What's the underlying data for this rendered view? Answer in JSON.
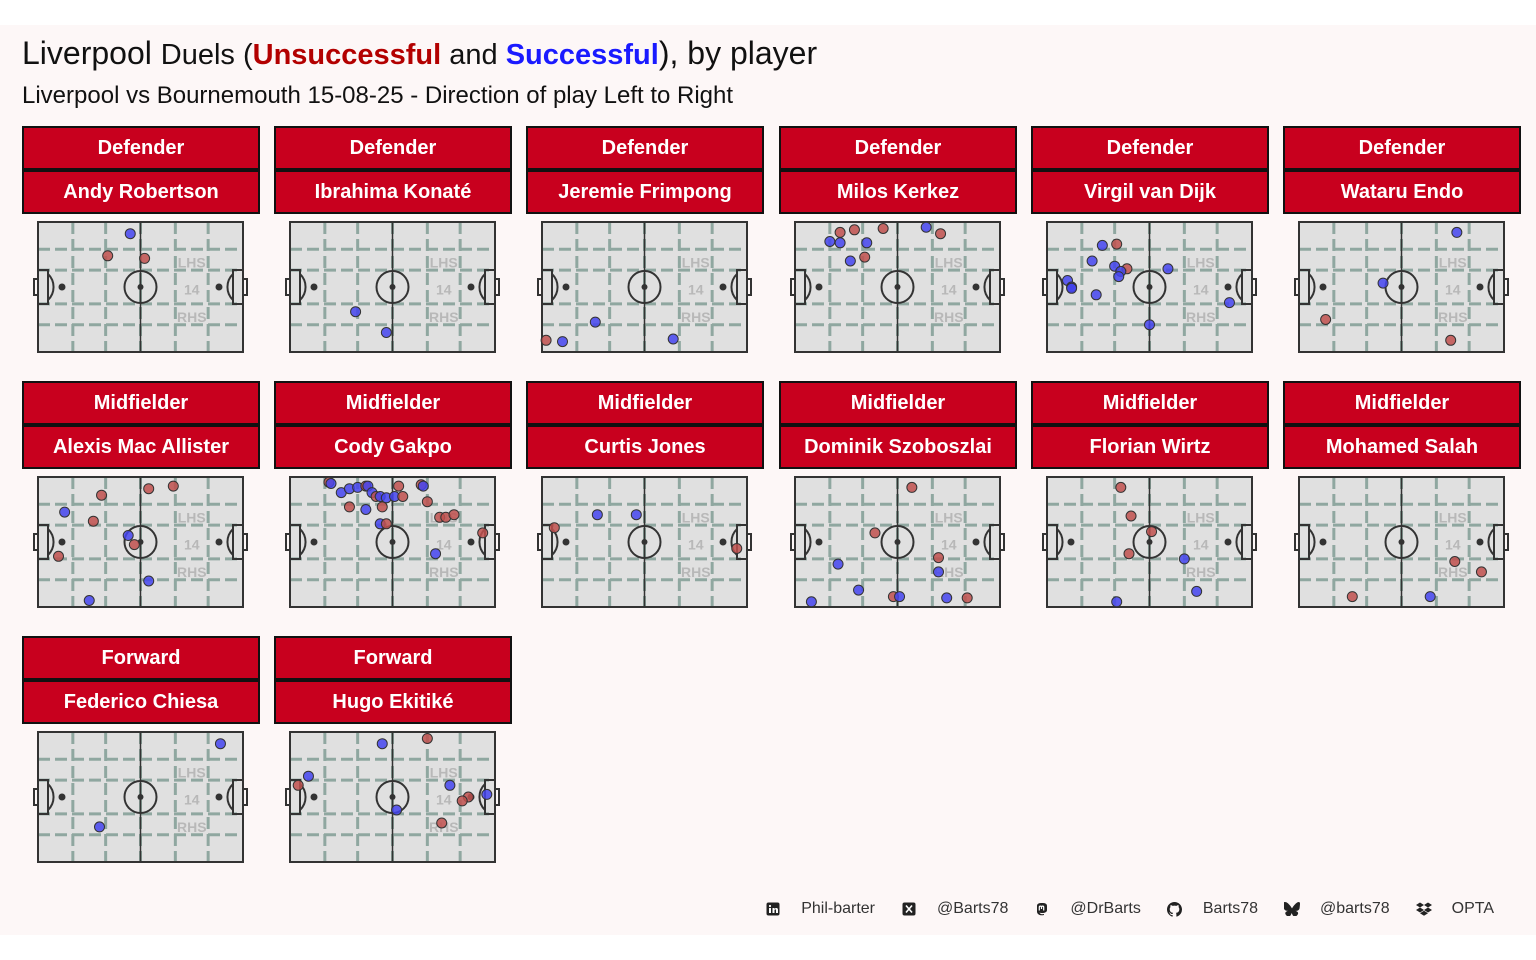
{
  "title": {
    "team": "Liverpool",
    "duels": "Duels",
    "open_paren": " (",
    "unsuccessful": "Unsuccessful",
    "and": " and ",
    "successful": "Successful",
    "close": "), by player"
  },
  "subtitle": "Liverpool vs Bournemouth 15-08-25 - Direction of play Left to Right",
  "pitch_labels": {
    "lhs": "LHS",
    "center": "14",
    "rhs": "RHS"
  },
  "colors": {
    "strip": "#c8001e",
    "unsuccessful": "#c0504d",
    "successful": "#4444ee",
    "pitch": "#e0e0e0",
    "pitch_lines": "#333333",
    "grid": "#8fa7a0"
  },
  "footer": [
    {
      "icon": "linkedin-icon",
      "text": "Phil-barter"
    },
    {
      "icon": "x-icon",
      "text": "@Barts78"
    },
    {
      "icon": "mastodon-icon",
      "text": "@DrBarts"
    },
    {
      "icon": "github-icon",
      "text": "Barts78"
    },
    {
      "icon": "bluesky-icon",
      "text": "@barts78"
    },
    {
      "icon": "dropbox-icon",
      "text": "OPTA"
    }
  ],
  "chart_data": {
    "type": "scatter",
    "x_range": [
      0,
      100
    ],
    "y_range": [
      0,
      100
    ],
    "series_legend": [
      "Unsuccessful",
      "Successful"
    ],
    "panels": [
      {
        "position": "Defender",
        "player": "Andy Robertson",
        "duels": [
          {
            "x": 45,
            "y": 9,
            "success": true
          },
          {
            "x": 34,
            "y": 26,
            "success": false
          },
          {
            "x": 52,
            "y": 28,
            "success": false
          }
        ]
      },
      {
        "position": "Defender",
        "player": "Ibrahima Konaté",
        "duels": [
          {
            "x": 32,
            "y": 69,
            "success": true
          },
          {
            "x": 47,
            "y": 85,
            "success": true
          }
        ]
      },
      {
        "position": "Defender",
        "player": "Jeremie Frimpong",
        "duels": [
          {
            "x": 2,
            "y": 91,
            "success": false
          },
          {
            "x": 10,
            "y": 92,
            "success": true
          },
          {
            "x": 26,
            "y": 77,
            "success": true
          },
          {
            "x": 64,
            "y": 90,
            "success": true
          }
        ]
      },
      {
        "position": "Defender",
        "player": "Milos Kerkez",
        "duels": [
          {
            "x": 22,
            "y": 8,
            "success": false
          },
          {
            "x": 29,
            "y": 6,
            "success": false
          },
          {
            "x": 43,
            "y": 5,
            "success": false
          },
          {
            "x": 17,
            "y": 15,
            "success": true
          },
          {
            "x": 22,
            "y": 16,
            "success": true
          },
          {
            "x": 35,
            "y": 16,
            "success": true
          },
          {
            "x": 64,
            "y": 4,
            "success": true
          },
          {
            "x": 71,
            "y": 9,
            "success": false
          },
          {
            "x": 34,
            "y": 27,
            "success": false
          },
          {
            "x": 27,
            "y": 30,
            "success": true
          }
        ]
      },
      {
        "position": "Defender",
        "player": "Virgil van Dijk",
        "duels": [
          {
            "x": 27,
            "y": 18,
            "success": true
          },
          {
            "x": 34,
            "y": 17,
            "success": false
          },
          {
            "x": 22,
            "y": 30,
            "success": true
          },
          {
            "x": 33,
            "y": 34,
            "success": true
          },
          {
            "x": 39,
            "y": 36,
            "success": false
          },
          {
            "x": 36,
            "y": 38,
            "success": true
          },
          {
            "x": 35,
            "y": 42,
            "success": true
          },
          {
            "x": 10,
            "y": 45,
            "success": true
          },
          {
            "x": 12,
            "y": 50,
            "success": true
          },
          {
            "x": 12,
            "y": 51,
            "success": true
          },
          {
            "x": 24,
            "y": 56,
            "success": true
          },
          {
            "x": 59,
            "y": 36,
            "success": true
          },
          {
            "x": 89,
            "y": 62,
            "success": true
          },
          {
            "x": 50,
            "y": 79,
            "success": true
          }
        ]
      },
      {
        "position": "Defender",
        "player": "Wataru Endo",
        "duels": [
          {
            "x": 77,
            "y": 8,
            "success": true
          },
          {
            "x": 41,
            "y": 47,
            "success": true
          },
          {
            "x": 13,
            "y": 75,
            "success": false
          },
          {
            "x": 74,
            "y": 91,
            "success": false
          }
        ]
      },
      {
        "position": "Midfielder",
        "player": "Alexis Mac Allister",
        "duels": [
          {
            "x": 31,
            "y": 14,
            "success": false
          },
          {
            "x": 54,
            "y": 9,
            "success": false
          },
          {
            "x": 66,
            "y": 7,
            "success": false
          },
          {
            "x": 13,
            "y": 27,
            "success": true
          },
          {
            "x": 27,
            "y": 34,
            "success": false
          },
          {
            "x": 44,
            "y": 45,
            "success": true
          },
          {
            "x": 47,
            "y": 52,
            "success": false
          },
          {
            "x": 10,
            "y": 61,
            "success": false
          },
          {
            "x": 54,
            "y": 80,
            "success": true
          },
          {
            "x": 25,
            "y": 95,
            "success": true
          }
        ]
      },
      {
        "position": "Midfielder",
        "player": "Cody Gakpo",
        "duels": [
          {
            "x": 19,
            "y": 4,
            "success": false
          },
          {
            "x": 20,
            "y": 5,
            "success": true
          },
          {
            "x": 25,
            "y": 12,
            "success": true
          },
          {
            "x": 29,
            "y": 9,
            "success": true
          },
          {
            "x": 33,
            "y": 8,
            "success": true
          },
          {
            "x": 37,
            "y": 7,
            "success": false
          },
          {
            "x": 38,
            "y": 7,
            "success": true
          },
          {
            "x": 40,
            "y": 12,
            "success": true
          },
          {
            "x": 42,
            "y": 15,
            "success": false
          },
          {
            "x": 44,
            "y": 15,
            "success": true
          },
          {
            "x": 47,
            "y": 16,
            "success": true
          },
          {
            "x": 51,
            "y": 15,
            "success": true
          },
          {
            "x": 55,
            "y": 15,
            "success": false
          },
          {
            "x": 53,
            "y": 7,
            "success": false
          },
          {
            "x": 64,
            "y": 6,
            "success": false
          },
          {
            "x": 65,
            "y": 7,
            "success": true
          },
          {
            "x": 29,
            "y": 23,
            "success": false
          },
          {
            "x": 37,
            "y": 25,
            "success": true
          },
          {
            "x": 45,
            "y": 23,
            "success": false
          },
          {
            "x": 44,
            "y": 36,
            "success": true
          },
          {
            "x": 47,
            "y": 36,
            "success": false
          },
          {
            "x": 67,
            "y": 19,
            "success": false
          },
          {
            "x": 73,
            "y": 31,
            "success": false
          },
          {
            "x": 76,
            "y": 31,
            "success": false
          },
          {
            "x": 80,
            "y": 29,
            "success": false
          },
          {
            "x": 94,
            "y": 43,
            "success": false
          },
          {
            "x": 71,
            "y": 59,
            "success": true
          }
        ]
      },
      {
        "position": "Midfielder",
        "player": "Curtis Jones",
        "duels": [
          {
            "x": 6,
            "y": 39,
            "success": false
          },
          {
            "x": 27,
            "y": 29,
            "success": true
          },
          {
            "x": 46,
            "y": 29,
            "success": true
          },
          {
            "x": 95,
            "y": 55,
            "success": false
          }
        ]
      },
      {
        "position": "Midfielder",
        "player": "Dominik Szoboszlai",
        "duels": [
          {
            "x": 57,
            "y": 8,
            "success": false
          },
          {
            "x": 39,
            "y": 43,
            "success": false
          },
          {
            "x": 70,
            "y": 62,
            "success": false
          },
          {
            "x": 21,
            "y": 67,
            "success": true
          },
          {
            "x": 70,
            "y": 73,
            "success": true
          },
          {
            "x": 31,
            "y": 87,
            "success": true
          },
          {
            "x": 48,
            "y": 92,
            "success": false
          },
          {
            "x": 51,
            "y": 92,
            "success": true
          },
          {
            "x": 8,
            "y": 96,
            "success": true
          },
          {
            "x": 74,
            "y": 93,
            "success": true
          },
          {
            "x": 84,
            "y": 93,
            "success": false
          }
        ]
      },
      {
        "position": "Midfielder",
        "player": "Florian Wirtz",
        "duels": [
          {
            "x": 36,
            "y": 8,
            "success": false
          },
          {
            "x": 41,
            "y": 30,
            "success": false
          },
          {
            "x": 51,
            "y": 42,
            "success": false
          },
          {
            "x": 40,
            "y": 59,
            "success": false
          },
          {
            "x": 67,
            "y": 63,
            "success": true
          },
          {
            "x": 73,
            "y": 88,
            "success": true
          },
          {
            "x": 34,
            "y": 96,
            "success": true
          }
        ]
      },
      {
        "position": "Midfielder",
        "player": "Mohamed Salah",
        "duels": [
          {
            "x": 76,
            "y": 65,
            "success": false
          },
          {
            "x": 89,
            "y": 73,
            "success": false
          },
          {
            "x": 26,
            "y": 92,
            "success": false
          },
          {
            "x": 64,
            "y": 92,
            "success": true
          }
        ]
      },
      {
        "position": "Forward",
        "player": "Federico Chiesa",
        "duels": [
          {
            "x": 89,
            "y": 9,
            "success": true
          },
          {
            "x": 30,
            "y": 73,
            "success": true
          }
        ]
      },
      {
        "position": "Forward",
        "player": "Hugo Ekitiké",
        "duels": [
          {
            "x": 45,
            "y": 9,
            "success": true
          },
          {
            "x": 67,
            "y": 5,
            "success": false
          },
          {
            "x": 9,
            "y": 34,
            "success": true
          },
          {
            "x": 4,
            "y": 41,
            "success": false
          },
          {
            "x": 78,
            "y": 41,
            "success": true
          },
          {
            "x": 87,
            "y": 50,
            "success": false
          },
          {
            "x": 84,
            "y": 53,
            "success": false
          },
          {
            "x": 96,
            "y": 48,
            "success": true
          },
          {
            "x": 52,
            "y": 60,
            "success": true
          },
          {
            "x": 74,
            "y": 70,
            "success": false
          }
        ]
      }
    ]
  }
}
